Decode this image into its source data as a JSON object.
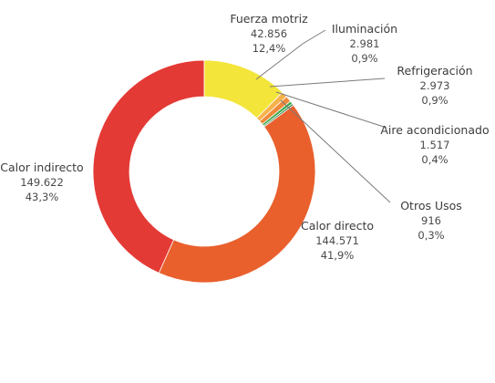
{
  "chart_data": {
    "type": "pie",
    "donut": true,
    "slices": [
      {
        "name": "Fuerza motriz",
        "value_label": "42.856",
        "percent_label": "12,4%",
        "value": 42856,
        "percent": 12.4,
        "color": "#f3e53a"
      },
      {
        "name": "Iluminación",
        "value_label": "2.981",
        "percent_label": "0,9%",
        "value": 2981,
        "percent": 0.9,
        "color": "#f6b24a"
      },
      {
        "name": "Refrigeración",
        "value_label": "2.973",
        "percent_label": "0,9%",
        "value": 2973,
        "percent": 0.9,
        "color": "#f08a3a"
      },
      {
        "name": "Aire acondicionado",
        "value_label": "1.517",
        "percent_label": "0,4%",
        "value": 1517,
        "percent": 0.4,
        "color": "#3aa84a"
      },
      {
        "name": "Otros Usos",
        "value_label": "916",
        "percent_label": "0,3%",
        "value": 916,
        "percent": 0.3,
        "color": "#1f7a3a"
      },
      {
        "name": "Calor directo",
        "value_label": "144.571",
        "percent_label": "41,9%",
        "value": 144571,
        "percent": 41.9,
        "color": "#e9602d"
      },
      {
        "name": "Calor indirecto",
        "value_label": "149.622",
        "percent_label": "43,3%",
        "value": 149622,
        "percent": 43.3,
        "color": "#e43a35"
      }
    ]
  }
}
